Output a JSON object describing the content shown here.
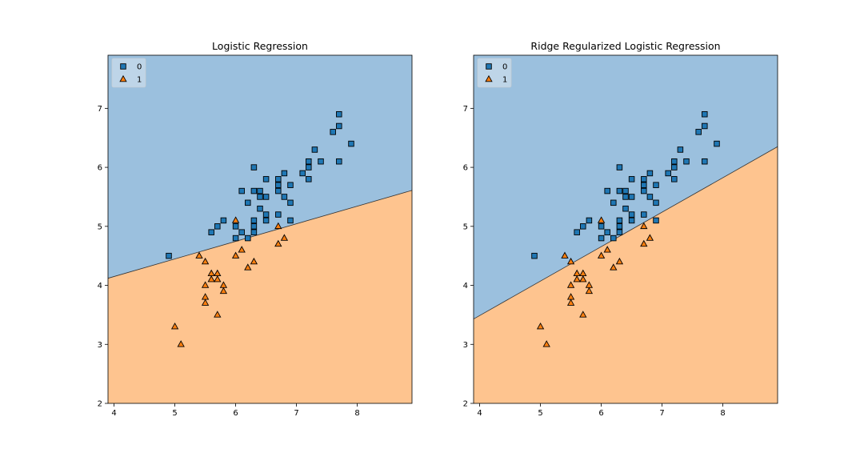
{
  "colors": {
    "class_0": "#1f77b4",
    "class_1": "#ff7f0e",
    "region_0": "#9bc0de",
    "region_1": "#fec48f",
    "boundary": "#333333"
  },
  "chart_data": [
    {
      "type": "scatter",
      "title": "Logistic Regression",
      "xlabel": "",
      "ylabel": "",
      "xlim": [
        3.9,
        8.9
      ],
      "ylim": [
        2.0,
        7.9
      ],
      "xticks": [
        4,
        5,
        6,
        7,
        8
      ],
      "yticks": [
        2,
        3,
        4,
        5,
        6,
        7
      ],
      "grid": false,
      "legend_position": "top-left",
      "decision_boundary": [
        [
          3.9,
          4.12
        ],
        [
          8.9,
          5.61
        ]
      ],
      "region_above_class": "0",
      "region_below_class": "1",
      "series": [
        {
          "name": "0",
          "marker": "square",
          "points": [
            [
              4.9,
              4.5
            ],
            [
              5.6,
              4.9
            ],
            [
              5.7,
              5.0
            ],
            [
              5.8,
              5.1
            ],
            [
              6.0,
              4.8
            ],
            [
              6.0,
              5.0
            ],
            [
              6.1,
              4.9
            ],
            [
              6.1,
              5.6
            ],
            [
              6.2,
              4.8
            ],
            [
              6.2,
              5.4
            ],
            [
              6.3,
              4.9
            ],
            [
              6.3,
              5.0
            ],
            [
              6.3,
              5.1
            ],
            [
              6.3,
              5.6
            ],
            [
              6.3,
              6.0
            ],
            [
              6.4,
              5.3
            ],
            [
              6.4,
              5.5
            ],
            [
              6.4,
              5.6
            ],
            [
              6.5,
              5.1
            ],
            [
              6.5,
              5.2
            ],
            [
              6.5,
              5.5
            ],
            [
              6.5,
              5.8
            ],
            [
              6.7,
              5.2
            ],
            [
              6.7,
              5.6
            ],
            [
              6.7,
              5.7
            ],
            [
              6.7,
              5.8
            ],
            [
              6.8,
              5.5
            ],
            [
              6.8,
              5.9
            ],
            [
              6.9,
              5.1
            ],
            [
              6.9,
              5.4
            ],
            [
              6.9,
              5.7
            ],
            [
              7.1,
              5.9
            ],
            [
              7.2,
              5.8
            ],
            [
              7.2,
              6.0
            ],
            [
              7.2,
              6.1
            ],
            [
              7.3,
              6.3
            ],
            [
              7.4,
              6.1
            ],
            [
              7.6,
              6.6
            ],
            [
              7.7,
              6.1
            ],
            [
              7.7,
              6.7
            ],
            [
              7.7,
              6.9
            ],
            [
              7.9,
              6.4
            ]
          ]
        },
        {
          "name": "1",
          "marker": "triangle",
          "points": [
            [
              5.0,
              3.3
            ],
            [
              5.1,
              3.0
            ],
            [
              5.4,
              4.5
            ],
            [
              5.5,
              3.7
            ],
            [
              5.5,
              3.8
            ],
            [
              5.5,
              4.0
            ],
            [
              5.5,
              4.4
            ],
            [
              5.6,
              4.1
            ],
            [
              5.6,
              4.2
            ],
            [
              5.7,
              3.5
            ],
            [
              5.7,
              4.1
            ],
            [
              5.7,
              4.2
            ],
            [
              5.8,
              3.9
            ],
            [
              5.8,
              4.0
            ],
            [
              6.0,
              4.5
            ],
            [
              6.0,
              5.1
            ],
            [
              6.1,
              4.6
            ],
            [
              6.2,
              4.3
            ],
            [
              6.3,
              4.4
            ],
            [
              6.7,
              4.7
            ],
            [
              6.7,
              5.0
            ],
            [
              6.8,
              4.8
            ]
          ]
        }
      ]
    },
    {
      "type": "scatter",
      "title": "Ridge Regularized Logistic Regression",
      "xlabel": "",
      "ylabel": "",
      "xlim": [
        3.9,
        8.9
      ],
      "ylim": [
        2.0,
        7.9
      ],
      "xticks": [
        4,
        5,
        6,
        7,
        8
      ],
      "yticks": [
        2,
        3,
        4,
        5,
        6,
        7
      ],
      "grid": false,
      "legend_position": "top-left",
      "decision_boundary": [
        [
          3.9,
          3.43
        ],
        [
          8.9,
          6.35
        ]
      ],
      "region_above_class": "0",
      "region_below_class": "1",
      "series": [
        {
          "name": "0",
          "marker": "square",
          "points": [
            [
              4.9,
              4.5
            ],
            [
              5.6,
              4.9
            ],
            [
              5.7,
              5.0
            ],
            [
              5.8,
              5.1
            ],
            [
              6.0,
              4.8
            ],
            [
              6.0,
              5.0
            ],
            [
              6.1,
              4.9
            ],
            [
              6.1,
              5.6
            ],
            [
              6.2,
              4.8
            ],
            [
              6.2,
              5.4
            ],
            [
              6.3,
              4.9
            ],
            [
              6.3,
              5.0
            ],
            [
              6.3,
              5.1
            ],
            [
              6.3,
              5.6
            ],
            [
              6.3,
              6.0
            ],
            [
              6.4,
              5.3
            ],
            [
              6.4,
              5.5
            ],
            [
              6.4,
              5.6
            ],
            [
              6.5,
              5.1
            ],
            [
              6.5,
              5.2
            ],
            [
              6.5,
              5.5
            ],
            [
              6.5,
              5.8
            ],
            [
              6.7,
              5.2
            ],
            [
              6.7,
              5.6
            ],
            [
              6.7,
              5.7
            ],
            [
              6.7,
              5.8
            ],
            [
              6.8,
              5.5
            ],
            [
              6.8,
              5.9
            ],
            [
              6.9,
              5.1
            ],
            [
              6.9,
              5.4
            ],
            [
              6.9,
              5.7
            ],
            [
              7.1,
              5.9
            ],
            [
              7.2,
              5.8
            ],
            [
              7.2,
              6.0
            ],
            [
              7.2,
              6.1
            ],
            [
              7.3,
              6.3
            ],
            [
              7.4,
              6.1
            ],
            [
              7.6,
              6.6
            ],
            [
              7.7,
              6.1
            ],
            [
              7.7,
              6.7
            ],
            [
              7.7,
              6.9
            ],
            [
              7.9,
              6.4
            ]
          ]
        },
        {
          "name": "1",
          "marker": "triangle",
          "points": [
            [
              5.0,
              3.3
            ],
            [
              5.1,
              3.0
            ],
            [
              5.4,
              4.5
            ],
            [
              5.5,
              3.7
            ],
            [
              5.5,
              3.8
            ],
            [
              5.5,
              4.0
            ],
            [
              5.5,
              4.4
            ],
            [
              5.6,
              4.1
            ],
            [
              5.6,
              4.2
            ],
            [
              5.7,
              3.5
            ],
            [
              5.7,
              4.1
            ],
            [
              5.7,
              4.2
            ],
            [
              5.8,
              3.9
            ],
            [
              5.8,
              4.0
            ],
            [
              6.0,
              4.5
            ],
            [
              6.0,
              5.1
            ],
            [
              6.1,
              4.6
            ],
            [
              6.2,
              4.3
            ],
            [
              6.3,
              4.4
            ],
            [
              6.7,
              4.7
            ],
            [
              6.7,
              5.0
            ],
            [
              6.8,
              4.8
            ]
          ]
        }
      ]
    }
  ]
}
